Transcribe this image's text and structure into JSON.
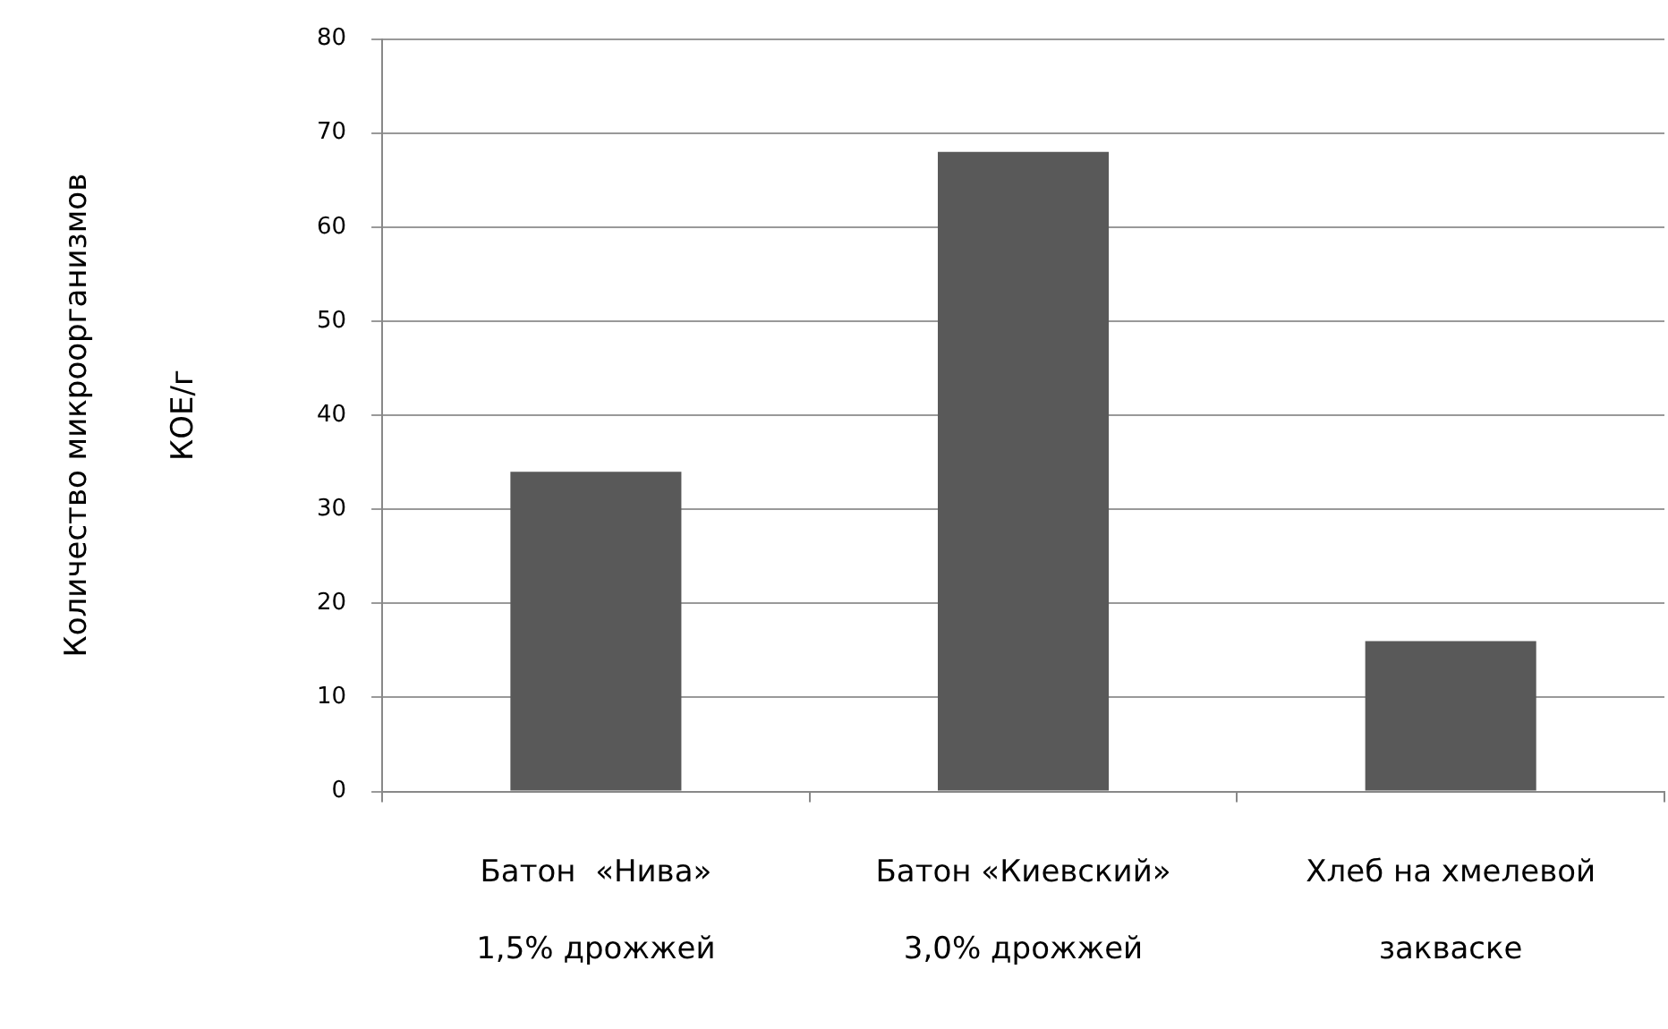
{
  "chart_data": {
    "type": "bar",
    "ylabel": "Количество микроорганизмов\nКОЕ/г",
    "categories": [
      "Батон  «Нива»\n1,5% дрожжей",
      "Батон «Киевский»\n3,0% дрожжей",
      "Хлеб на хмелевой\nзакваске"
    ],
    "values": [
      34,
      68,
      16
    ],
    "color": "#595959",
    "ylim": [
      0,
      80
    ],
    "yticks": [
      0,
      10,
      20,
      30,
      40,
      50,
      60,
      70,
      80
    ],
    "grid": "y",
    "legend": false
  }
}
